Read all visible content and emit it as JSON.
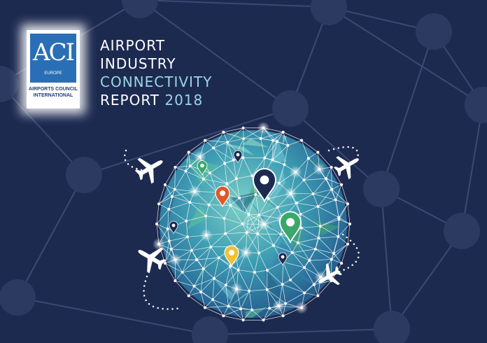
{
  "logo": {
    "acronym": "ACI",
    "region": "EUROPE",
    "name_line1": "AIRPORTS COUNCIL",
    "name_line2": "INTERNATIONAL"
  },
  "title": {
    "line1": "AIRPORT",
    "line2": "INDUSTRY",
    "line3": "CONNECTIVITY",
    "line4_word": "REPORT",
    "line4_year": "2018"
  },
  "colors": {
    "background": "#1d2a50",
    "accent_teal": "#9bd6e3",
    "pin_navy": "#1d2a50",
    "pin_green": "#3aa86b",
    "pin_orange": "#e0572a",
    "pin_yellow": "#f2c12e"
  },
  "illustration": {
    "pins": [
      {
        "color": "navy",
        "size": "large"
      },
      {
        "color": "green",
        "size": "large"
      },
      {
        "color": "orange",
        "size": "medium"
      },
      {
        "color": "yellow",
        "size": "medium"
      },
      {
        "color": "green",
        "size": "small"
      },
      {
        "color": "navy",
        "size": "small"
      },
      {
        "color": "navy",
        "size": "small"
      },
      {
        "color": "navy",
        "size": "small"
      }
    ],
    "airplanes": 4
  }
}
